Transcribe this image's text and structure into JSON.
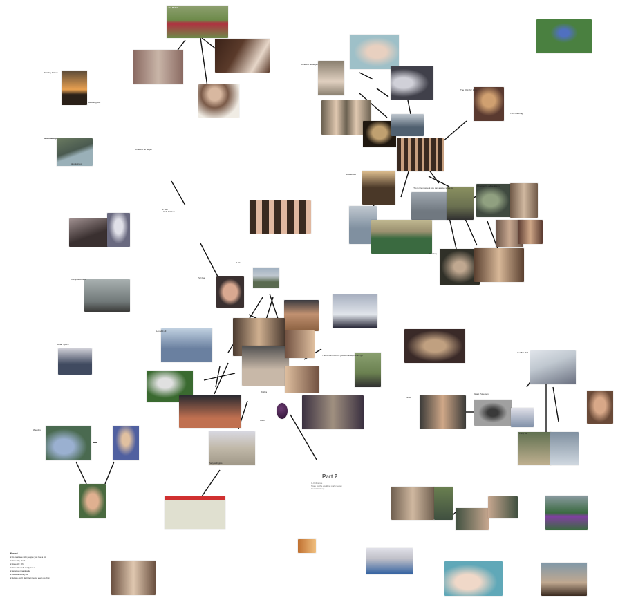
{
  "board": {
    "background": "#ffffff",
    "line_color": "#111111"
  },
  "texts": {
    "part2": {
      "title": "Part 2",
      "sub1": "C-Ordnance",
      "sub2": "Story for the wedding party below",
      "sub3": "I want to sleep"
    },
    "list": {
      "title": "Where?",
      "items": [
        "■ Do best see with people you like a lot",
        "■ Honestly, don't",
        "■ Honestly, Oh",
        "■ Honestly we'll really see it",
        "■ Being an imaginable",
        "■ Feels definitely ok",
        "■ But we don't definitely never even do that"
      ]
    }
  },
  "photos": [
    {
      "id": "team-photo",
      "color": "#6d8a4a",
      "accent": "#b03040"
    },
    {
      "id": "group-indoor",
      "color": "#8a6a62",
      "accent": "#c9b5a8"
    },
    {
      "id": "piano-kids",
      "color": "#5a3a2a",
      "accent": "#e6d6c8"
    },
    {
      "id": "boy-certificate",
      "color": "#7a5a48",
      "accent": "#f0ece4"
    },
    {
      "id": "sunset",
      "color": "#3a3020",
      "accent": "#e8a050"
    },
    {
      "id": "coast",
      "color": "#4a5a50",
      "accent": "#9ab0b8"
    },
    {
      "id": "baby-blanket",
      "color": "#9ec0c8",
      "accent": "#e8d0c0"
    },
    {
      "id": "baby-held",
      "color": "#8a8070",
      "accent": "#e0d0c0"
    },
    {
      "id": "toddler-costume",
      "color": "#40404a",
      "accent": "#d0d0d8"
    },
    {
      "id": "twins",
      "color": "#6a6050",
      "accent": "#e0c8b0"
    },
    {
      "id": "tv-screen",
      "color": "#201810",
      "accent": "#c0a070"
    },
    {
      "id": "harbour",
      "color": "#506070",
      "accent": "#c0c8d0"
    },
    {
      "id": "class-photo",
      "color": "#3a2a20",
      "accent": "#c8a080"
    },
    {
      "id": "kid-field",
      "color": "#4a8040",
      "accent": "#5070c0"
    },
    {
      "id": "flowers-kid",
      "color": "#5a3a30",
      "accent": "#d0a070"
    },
    {
      "id": "shop-interior",
      "color": "#4a3828",
      "accent": "#e0c090"
    },
    {
      "id": "grid-faces",
      "color": "#3a2a20",
      "accent": "#e0b8a0"
    },
    {
      "id": "friends-city",
      "color": "#707880",
      "accent": "#a0a8b0"
    },
    {
      "id": "friends-park",
      "color": "#6a7050",
      "accent": "#303030"
    },
    {
      "id": "christmas-tree",
      "color": "#404a40",
      "accent": "#90a080"
    },
    {
      "id": "group-wood",
      "color": "#705a48",
      "accent": "#d0b8a0"
    },
    {
      "id": "stadium",
      "color": "#3a6a40",
      "accent": "#c0b890"
    },
    {
      "id": "stadium-top",
      "color": "#8090a0",
      "accent": "#c0c8d0"
    },
    {
      "id": "couple-cafe",
      "color": "#6a5448",
      "accent": "#c8a890"
    },
    {
      "id": "party-dark",
      "color": "#303028",
      "accent": "#c0a890"
    },
    {
      "id": "pub-group",
      "color": "#5a4030",
      "accent": "#d8b898"
    },
    {
      "id": "kid-bench",
      "color": "#6a5040",
      "accent": "#2a2a2a"
    },
    {
      "id": "kids-stairs",
      "color": "#3a3030",
      "accent": "#a09090"
    },
    {
      "id": "kid-costume",
      "color": "#6a6a80",
      "accent": "#e0e0e8"
    },
    {
      "id": "foggy-hill",
      "color": "#707878",
      "accent": "#a8b0b0"
    },
    {
      "id": "face-closeup",
      "color": "#3a3030",
      "accent": "#d8a890"
    },
    {
      "id": "building",
      "color": "#a0b0c0",
      "accent": "#5a6a50"
    },
    {
      "id": "snowy-couple",
      "color": "#a8b0c0",
      "accent": "#2a2a3a"
    },
    {
      "id": "sunset-sea",
      "color": "#8a6040",
      "accent": "#c09070"
    },
    {
      "id": "team-hands",
      "color": "#6a80a0",
      "accent": "#e0e8f0"
    },
    {
      "id": "group-bar",
      "color": "#4a3a30",
      "accent": "#d0b090"
    },
    {
      "id": "chess-players",
      "color": "#505050",
      "accent": "#c8b8a8"
    },
    {
      "id": "dinner",
      "color": "#705040",
      "accent": "#e0c0a0"
    },
    {
      "id": "grad-group",
      "color": "#404a60",
      "accent": "#d0d0d8"
    },
    {
      "id": "dog-sofa",
      "color": "#3a6a30",
      "accent": "#e0e0e0"
    },
    {
      "id": "concert",
      "color": "#2a2a30",
      "accent": "#c07050"
    },
    {
      "id": "basketball",
      "color": "#3a3040",
      "accent": "#a09080"
    },
    {
      "id": "couple-trees",
      "color": "#6a8050",
      "accent": "#303030"
    },
    {
      "id": "restaurant",
      "color": "#6a4030",
      "accent": "#d8b090"
    },
    {
      "id": "beach-soccer",
      "color": "#c0b8a8",
      "accent": "#2a4a80"
    },
    {
      "id": "website",
      "color": "#e0e0d0",
      "accent": "#d03030"
    },
    {
      "id": "pier-food",
      "color": "#c07030",
      "accent": "#f0c080"
    },
    {
      "id": "dolphin",
      "color": "#4a6a50",
      "accent": "#9ab0d0"
    },
    {
      "id": "kid-blue",
      "color": "#5060a0",
      "accent": "#e0c0a0"
    },
    {
      "id": "selfie",
      "color": "#4a6a40",
      "accent": "#e0b090"
    },
    {
      "id": "party-club",
      "color": "#3a2a28",
      "accent": "#c0a080"
    },
    {
      "id": "rocks-snow",
      "color": "#c0c8d0",
      "accent": "#6a7080"
    },
    {
      "id": "team-dark",
      "color": "#3a3a38",
      "accent": "#d0a888"
    },
    {
      "id": "raccoon",
      "color": "#a0a0a0",
      "accent": "#3a3a3a"
    },
    {
      "id": "snow-house",
      "color": "#8090a8",
      "accent": "#e0e0e8"
    },
    {
      "id": "outdoor-shed",
      "color": "#607050",
      "accent": "#c0b090"
    },
    {
      "id": "man-shirtless",
      "color": "#6a4a38",
      "accent": "#d8a888"
    },
    {
      "id": "group-yard",
      "color": "#706050",
      "accent": "#d0b8a0"
    },
    {
      "id": "tennis-court",
      "color": "#4a7a50",
      "accent": "#e0e0d0"
    },
    {
      "id": "party-green",
      "color": "#405040",
      "accent": "#c8a890"
    },
    {
      "id": "team-green",
      "color": "#3a6a40",
      "accent": "#8040a0"
    },
    {
      "id": "couple-baby",
      "color": "#c0c0c8",
      "accent": "#3060a0"
    },
    {
      "id": "baby-feet",
      "color": "#60a8b8",
      "accent": "#f0d8c8"
    },
    {
      "id": "couple-beach",
      "color": "#8098a8",
      "accent": "#3a2a20"
    },
    {
      "id": "family-old",
      "color": "#6a5040",
      "accent": "#e0c8b0"
    }
  ],
  "labels": [
    "Jan Robel",
    "Bleeding day",
    "Sunday Friday",
    "Mountaintop",
    "The 'Out the' time",
    "I am reaching",
    "Where it all began",
    "Chapter 1 - Adventures",
    "Pinching",
    "Grease Bar",
    "Campus Round",
    "Club hold up",
    "Part Bar",
    "Dead Space",
    "This is the moment you can always smile go",
    "Loved it all",
    "Kobra",
    "Giant Pokemon",
    "Ferry Bar",
    "Hot Bar Ball",
    "Nice",
    "Wedding",
    "1. Ka",
    "2. Sol",
    "Party with girls"
  ]
}
